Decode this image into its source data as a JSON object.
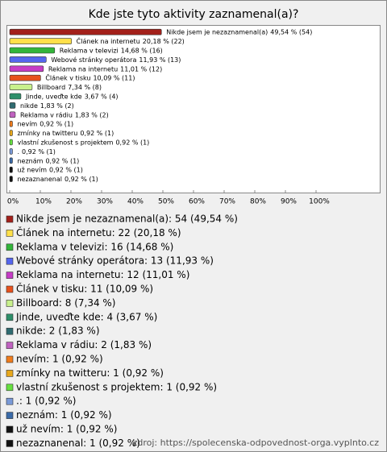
{
  "chart_data": {
    "type": "bar",
    "orientation": "horizontal",
    "title": "Kde jste tyto aktivity zaznamenal(a)?",
    "categories": [
      "Nikde jsem je nezaznamenal(a)",
      "Článek na internetu",
      "Reklama v televizi",
      "Webové stránky operátora",
      "Reklama na internetu",
      "Článek v tisku",
      "Billboard",
      "Jinde, uveďte kde",
      "nikde",
      "Reklama v rádiu",
      "nevím",
      "zmínky na twitteru",
      "vlastní zkušenost s projektem",
      ".",
      "neznám",
      "už nevím",
      "nezaznanenal"
    ],
    "values": [
      49.54,
      20.18,
      14.68,
      11.93,
      11.01,
      10.09,
      7.34,
      3.67,
      1.83,
      1.83,
      0.92,
      0.92,
      0.92,
      0.92,
      0.92,
      0.92,
      0.92
    ],
    "value_labels": [
      "49,54 % (54)",
      "20,18 % (22)",
      "14,68 % (16)",
      "11,93 % (13)",
      "11,01 % (12)",
      "10,09 % (11)",
      "7,34 % (8)",
      "3,67 % (4)",
      "1,83 % (2)",
      "1,83 % (2)",
      "0,92 % (1)",
      "0,92 % (1)",
      "0,92 % (1)",
      "0,92 % (1)",
      "0,92 % (1)",
      "0,92 % (1)",
      "0,92 % (1)"
    ],
    "colors": [
      "#a3201a",
      "#ffe04a",
      "#33b53a",
      "#5566ee",
      "#c63cc6",
      "#e8511c",
      "#c8f08c",
      "#2e8f6a",
      "#2f6b70",
      "#c062c0",
      "#f07c1c",
      "#e8a81c",
      "#66e040",
      "#7a9ad8",
      "#3a6aa8",
      "#111111",
      "#111111"
    ],
    "legend_labels": [
      "Nikde jsem je nezaznamenal(a): 54 (49,54 %)",
      "Článek na internetu: 22 (20,18 %)",
      "Reklama v televizi: 16 (14,68 %)",
      "Webové stránky operátora: 13 (11,93 %)",
      "Reklama na internetu: 12 (11,01 %)",
      "Článek v tisku: 11 (10,09 %)",
      "Billboard: 8 (7,34 %)",
      "Jinde, uveďte kde: 4 (3,67 %)",
      "nikde: 2 (1,83 %)",
      "Reklama v rádiu: 2 (1,83 %)",
      "nevím: 1 (0,92 %)",
      "zmínky na twitteru: 1 (0,92 %)",
      "vlastní zkušenost s projektem: 1 (0,92 %)",
      ".: 1 (0,92 %)",
      "neznám: 1 (0,92 %)",
      "už nevím: 1 (0,92 %)",
      "nezaznanenal: 1 (0,92 %)"
    ],
    "xlim": [
      0,
      120
    ],
    "xticks": [
      {
        "value": 0,
        "label": "0%"
      },
      {
        "value": 10,
        "label": "10%"
      },
      {
        "value": 20,
        "label": "20%"
      },
      {
        "value": 30,
        "label": "30%"
      },
      {
        "value": 40,
        "label": "40%"
      },
      {
        "value": 50,
        "label": "50%"
      },
      {
        "value": 60,
        "label": "60%"
      },
      {
        "value": 70,
        "label": "70%"
      },
      {
        "value": 80,
        "label": "80%"
      },
      {
        "value": 90,
        "label": "90%"
      },
      {
        "value": 100,
        "label": "100%"
      }
    ],
    "source": "zdroj: https://spolecenska-odpovednost-orga.vyplnto.cz"
  }
}
